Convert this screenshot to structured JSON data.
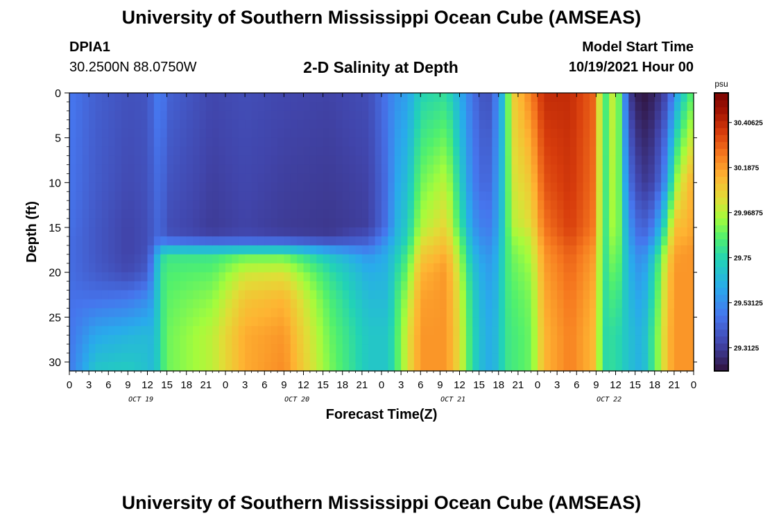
{
  "header": {
    "title": "University of Southern Mississippi Ocean Cube (AMSEAS)",
    "station_id": "DPIA1",
    "coordinates": "30.2500N  88.0750W",
    "subtitle": "2-D Salinity at Depth",
    "model_start_label": "Model Start Time",
    "model_start_value": "10/19/2021 Hour 00"
  },
  "footer": {
    "title": "University of Southern Mississippi Ocean Cube (AMSEAS)"
  },
  "chart_data": {
    "type": "heatmap",
    "title": "2-D Salinity at Depth",
    "xlabel": "Forecast Time(Z)",
    "ylabel": "Depth (ft)",
    "x_unit": "hours since 10/19/2021 00Z",
    "x_range": [
      0,
      96
    ],
    "x_tick_labels": [
      "0",
      "3",
      "6",
      "9",
      "12",
      "15",
      "18",
      "21",
      "0",
      "3",
      "6",
      "9",
      "12",
      "15",
      "18",
      "21",
      "0",
      "3",
      "6",
      "9",
      "12",
      "15",
      "18",
      "21",
      "0",
      "3",
      "6",
      "9",
      "12",
      "15",
      "18",
      "21",
      "0"
    ],
    "day_labels": [
      {
        "label": "OCT 19",
        "hour": 11
      },
      {
        "label": "OCT 20",
        "hour": 35
      },
      {
        "label": "OCT 21",
        "hour": 59
      },
      {
        "label": "OCT 22",
        "hour": 83
      }
    ],
    "y_range": [
      0,
      31
    ],
    "y_ticks": [
      0,
      5,
      10,
      15,
      20,
      25,
      30
    ],
    "colorbar": {
      "unit": "psu",
      "range": [
        29.2,
        30.55
      ],
      "tick_values": [
        30.40625,
        30.1875,
        29.96875,
        29.75,
        29.53125,
        29.3125
      ],
      "tick_labels": [
        "30.40625",
        "30.1875",
        "29.96875",
        "29.75",
        "29.53125",
        "29.3125"
      ]
    },
    "times": [
      0,
      4,
      9,
      12,
      13,
      14,
      15,
      22,
      27,
      33,
      40,
      46,
      49,
      50,
      52,
      54,
      58,
      60,
      62,
      64,
      65,
      66,
      67,
      68,
      71,
      73,
      77,
      81,
      82,
      84,
      86,
      88,
      90,
      92,
      93,
      95,
      96
    ],
    "depths": [
      0,
      10,
      15,
      16,
      17,
      18,
      20,
      23,
      27,
      31
    ],
    "salinity": [
      [
        29.48,
        29.47,
        29.46,
        29.45,
        29.45,
        29.45,
        29.45,
        29.46,
        29.47,
        29.48
      ],
      [
        29.41,
        29.4,
        29.39,
        29.39,
        29.39,
        29.39,
        29.4,
        29.46,
        29.6,
        29.7
      ],
      [
        29.37,
        29.35,
        29.33,
        29.33,
        29.33,
        29.33,
        29.35,
        29.48,
        29.64,
        29.72
      ],
      [
        29.38,
        29.37,
        29.36,
        29.36,
        29.36,
        29.37,
        29.4,
        29.53,
        29.66,
        29.68
      ],
      [
        29.45,
        29.42,
        29.41,
        29.41,
        29.44,
        29.52,
        29.56,
        29.6,
        29.64,
        29.65
      ],
      [
        29.51,
        29.46,
        29.44,
        29.45,
        29.55,
        29.74,
        29.78,
        29.78,
        29.78,
        29.78
      ],
      [
        29.42,
        29.38,
        29.36,
        29.38,
        29.55,
        29.8,
        29.84,
        29.86,
        29.88,
        29.88
      ],
      [
        29.34,
        29.32,
        29.31,
        29.33,
        29.53,
        29.8,
        29.86,
        29.92,
        29.98,
        29.98
      ],
      [
        29.36,
        29.34,
        29.33,
        29.35,
        29.53,
        29.86,
        30.0,
        30.1,
        30.16,
        30.16
      ],
      [
        29.34,
        29.32,
        29.31,
        29.33,
        29.53,
        29.86,
        30.02,
        30.14,
        30.2,
        30.22
      ],
      [
        29.33,
        29.31,
        29.3,
        29.31,
        29.45,
        29.68,
        29.78,
        29.84,
        29.88,
        29.9
      ],
      [
        29.36,
        29.33,
        29.32,
        29.38,
        29.44,
        29.55,
        29.62,
        29.66,
        29.7,
        29.7
      ],
      [
        29.48,
        29.46,
        29.47,
        29.53,
        29.58,
        29.62,
        29.64,
        29.66,
        29.7,
        29.7
      ],
      [
        29.54,
        29.58,
        29.62,
        29.64,
        29.66,
        29.7,
        29.74,
        29.78,
        29.8,
        29.8
      ],
      [
        29.58,
        29.67,
        29.72,
        29.74,
        29.78,
        29.82,
        29.88,
        29.96,
        30.02,
        30.02
      ],
      [
        29.74,
        29.88,
        29.96,
        30.0,
        30.04,
        30.08,
        30.14,
        30.18,
        30.2,
        30.2
      ],
      [
        29.78,
        29.98,
        30.06,
        30.1,
        30.12,
        30.16,
        30.2,
        30.2,
        30.2,
        30.2
      ],
      [
        29.62,
        29.74,
        29.82,
        29.86,
        29.9,
        29.94,
        29.98,
        30.02,
        30.04,
        30.04
      ],
      [
        29.46,
        29.5,
        29.56,
        29.6,
        29.62,
        29.66,
        29.7,
        29.74,
        29.76,
        29.76
      ],
      [
        29.36,
        29.42,
        29.48,
        29.5,
        29.52,
        29.55,
        29.58,
        29.6,
        29.62,
        29.62
      ],
      [
        29.4,
        29.46,
        29.5,
        29.52,
        29.54,
        29.56,
        29.58,
        29.6,
        29.62,
        29.62
      ],
      [
        29.56,
        29.6,
        29.62,
        29.63,
        29.64,
        29.65,
        29.66,
        29.67,
        29.68,
        29.68
      ],
      [
        29.72,
        29.74,
        29.76,
        29.77,
        29.78,
        29.79,
        29.8,
        29.8,
        29.8,
        29.8
      ],
      [
        30.06,
        30.0,
        29.96,
        29.92,
        29.9,
        29.88,
        29.86,
        29.84,
        29.82,
        29.82
      ],
      [
        30.24,
        30.1,
        30.04,
        30.0,
        29.98,
        29.96,
        29.93,
        29.9,
        29.88,
        29.88
      ],
      [
        30.4,
        30.32,
        30.26,
        30.24,
        30.22,
        30.2,
        30.18,
        30.16,
        30.14,
        30.14
      ],
      [
        30.4,
        30.38,
        30.36,
        30.34,
        30.32,
        30.3,
        30.28,
        30.26,
        30.24,
        30.24
      ],
      [
        30.28,
        30.26,
        30.24,
        30.22,
        30.2,
        30.18,
        30.16,
        30.14,
        30.12,
        30.12
      ],
      [
        29.76,
        29.76,
        29.76,
        29.76,
        29.76,
        29.76,
        29.76,
        29.76,
        29.76,
        29.76
      ],
      [
        30.06,
        30.02,
        30.0,
        29.98,
        29.96,
        29.94,
        29.9,
        29.84,
        29.78,
        29.78
      ],
      [
        29.32,
        29.46,
        29.56,
        29.58,
        29.6,
        29.62,
        29.64,
        29.66,
        29.68,
        29.68
      ],
      [
        29.2,
        29.3,
        29.4,
        29.42,
        29.46,
        29.5,
        29.54,
        29.58,
        29.62,
        29.62
      ],
      [
        29.25,
        29.34,
        29.5,
        29.56,
        29.62,
        29.7,
        29.76,
        29.8,
        29.84,
        29.84
      ],
      [
        29.36,
        29.58,
        29.86,
        29.92,
        29.98,
        30.04,
        30.08,
        30.1,
        30.12,
        30.12
      ],
      [
        29.54,
        29.9,
        30.12,
        30.14,
        30.16,
        30.18,
        30.2,
        30.2,
        30.2,
        30.2
      ],
      [
        29.8,
        30.1,
        30.14,
        30.16,
        30.18,
        30.2,
        30.2,
        30.2,
        30.2,
        30.2
      ],
      [
        29.86,
        30.16,
        30.18,
        30.18,
        30.2,
        30.2,
        30.2,
        30.2,
        30.2,
        30.2
      ]
    ]
  }
}
